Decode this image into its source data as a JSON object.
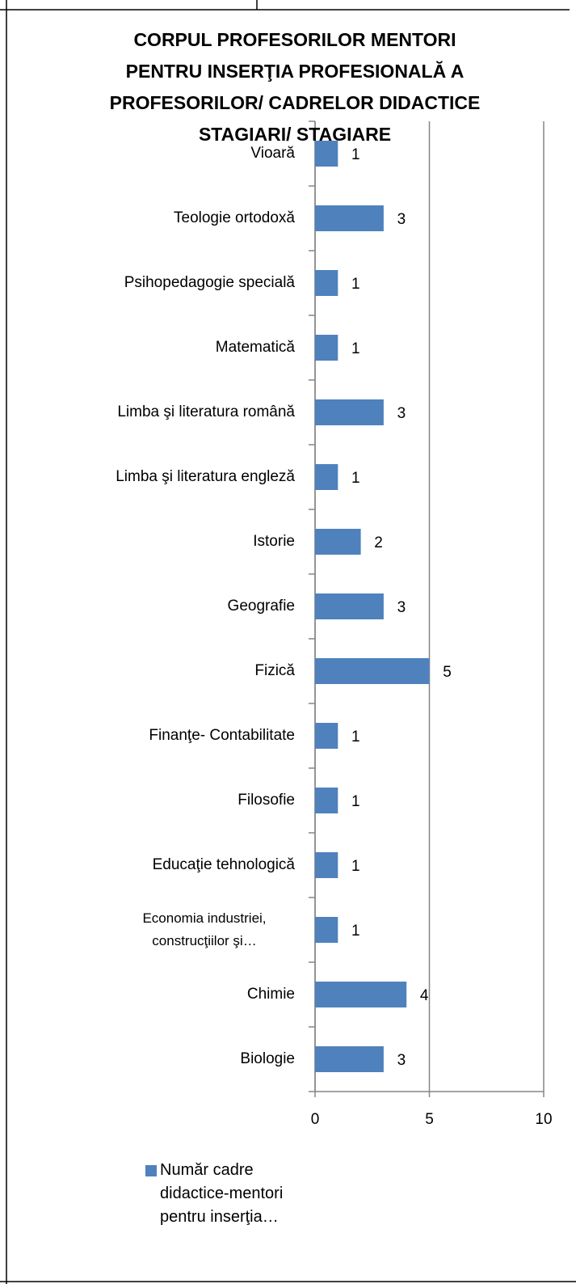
{
  "chart_data": {
    "type": "barh",
    "title": "CORPUL PROFESORILOR MENTORI PENTRU INSERŢIA PROFESIONALĂ A PROFESORILOR/ CADRELOR DIDACTICE STAGIARI/ STAGIARE",
    "categories": [
      "Biologie",
      "Chimie",
      "Economia industriei, construcţiilor şi…",
      "Educaţie tehnologică",
      "Filosofie",
      "Finanţe- Contabilitate",
      "Fizică",
      "Geografie",
      "Istorie",
      "Limba şi literatura engleză",
      "Limba şi literatura română",
      "Matematică",
      "Psihopedagogie specială",
      "Teologie ortodoxă",
      "Vioară"
    ],
    "series": [
      {
        "name": "Număr cadre didactice-mentori pentru inserţia…",
        "color": "#4f81bd",
        "values": [
          3,
          4,
          1,
          1,
          1,
          1,
          5,
          3,
          2,
          1,
          3,
          1,
          1,
          3,
          1
        ]
      }
    ],
    "xlim": [
      0,
      10
    ],
    "xticks": [
      0,
      5,
      10
    ],
    "grid": true,
    "legend": "bottom"
  }
}
